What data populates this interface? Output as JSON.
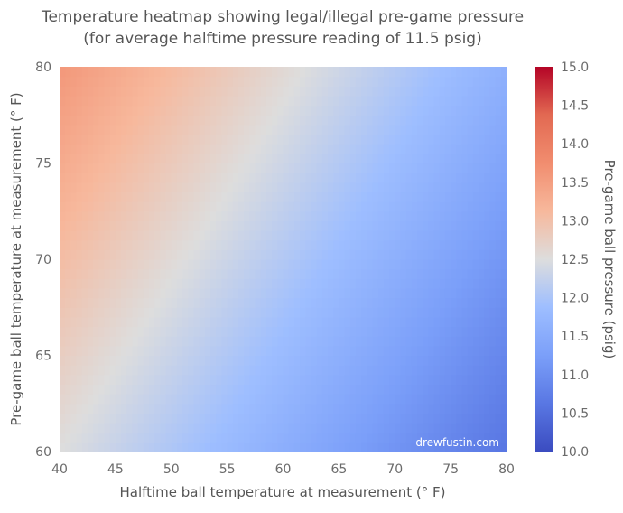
{
  "chart_data": {
    "type": "heatmap",
    "title": "Temperature heatmap showing legal/illegal pre-game pressure",
    "subtitle": "(for average halftime pressure reading of 11.5 psig)",
    "xlabel": "Halftime ball temperature at measurement (° F)",
    "ylabel": "Pre-game ball temperature at measurement (° F)",
    "colorbar_label": "Pre-game ball pressure (psig)",
    "xlim": [
      40,
      80
    ],
    "ylim": [
      60,
      80
    ],
    "x_ticks": [
      "40",
      "45",
      "50",
      "55",
      "60",
      "65",
      "70",
      "75",
      "80"
    ],
    "y_ticks": [
      "60",
      "65",
      "70",
      "75",
      "80"
    ],
    "colorbar_range": [
      10.0,
      15.0
    ],
    "colorbar_ticks": [
      "10.0",
      "10.5",
      "11.0",
      "11.5",
      "12.0",
      "12.5",
      "13.0",
      "13.5",
      "14.0",
      "14.5",
      "15.0"
    ],
    "colormap": "coolwarm",
    "grid": false,
    "corner_values": [
      {
        "x": 40,
        "y": 80,
        "pressure": 13.6
      },
      {
        "x": 40,
        "y": 60,
        "pressure": 12.5
      },
      {
        "x": 80,
        "y": 80,
        "pressure": 11.6
      },
      {
        "x": 80,
        "y": 60,
        "pressure": 10.6
      }
    ],
    "watermark": "drewfustin.com"
  }
}
